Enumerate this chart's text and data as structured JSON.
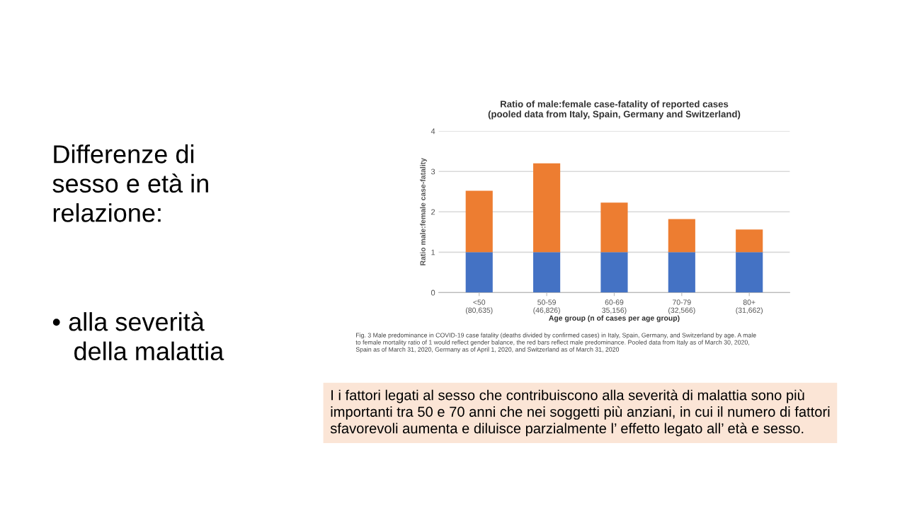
{
  "chart_data": {
    "type": "bar",
    "title": "Ratio of male:female case-fatality of reported cases\n(pooled data from Italy, Spain, Germany and Switzerland)",
    "categories": [
      "<50\n(80,635)",
      "50-59\n(46,826)",
      "60-69\n35,156)",
      "70-79\n(32,566)",
      "80+\n(31,662)"
    ],
    "series": [
      {
        "color": "#4472c4",
        "values": [
          1,
          1,
          1,
          1,
          1
        ]
      },
      {
        "color": "#ed7d31",
        "values": [
          1.52,
          2.2,
          1.23,
          0.82,
          0.56
        ]
      }
    ],
    "stacked": true,
    "xlabel": "Age group (n of cases per age group)",
    "ylabel": "Ratio male:female case-fatality",
    "ylim": [
      0,
      4
    ],
    "yticks": [
      0,
      1,
      2,
      3,
      4
    ],
    "grid": "y",
    "annotations": [
      "Differenze di\nsesso e età in\nrelazione:",
      "• alla severità\n   della malattia",
      "Fig. 3 Male predominance in COVID-19 case fatality (deaths divided by confirmed cases) in Italy, Spain, Germany, and Switzerland by age. A male\nto female mortality ratio of 1 would reflect gender balance, the red bars reflect male predominance. Pooled data from Italy as of March 30, 2020,\nSpain as of March 31, 2020, Germany as of April 1, 2020, and Switzerland as of March 31, 2020",
      "I i fattori legati al sesso che contribuiscono alla severità di malattia sono più\nimportanti tra 50 e 70 anni che nei soggetti più anziani, in cui il numero di fattori\nsfavorevoli aumenta e diluisce parzialmente l’ effetto legato all’ età e sesso."
    ]
  }
}
